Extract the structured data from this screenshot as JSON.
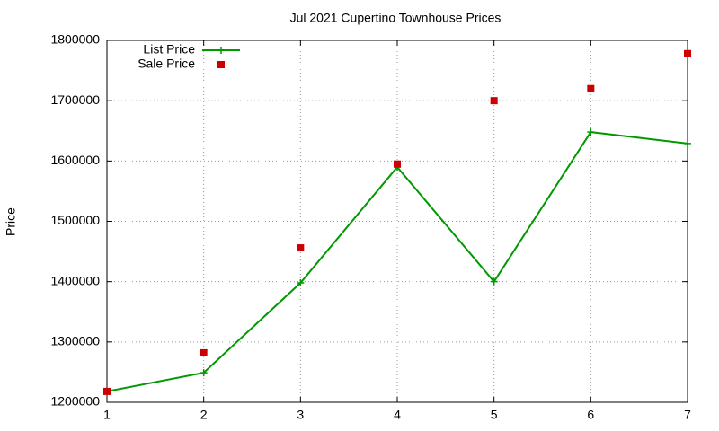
{
  "chart_data": {
    "type": "line",
    "title": "Jul 2021 Cupertino Townhouse Prices",
    "y_label": "Price",
    "x": [
      1,
      2,
      3,
      4,
      5,
      6,
      7
    ],
    "series": [
      {
        "name": "List Price",
        "color": "#009900",
        "style": "linespoints",
        "values": [
          1218000,
          1249000,
          1398000,
          1590000,
          1400000,
          1648000,
          1629000
        ]
      },
      {
        "name": "Sale Price",
        "color": "#cc0000",
        "style": "points",
        "values": [
          1218000,
          1282000,
          1456000,
          1595000,
          1700000,
          1720000,
          1778000
        ]
      }
    ],
    "xlim": [
      1,
      7
    ],
    "xticks": [
      1,
      2,
      3,
      4,
      5,
      6,
      7
    ],
    "ylim": [
      1200000,
      1800000
    ],
    "yticks": [
      1200000,
      1300000,
      1400000,
      1500000,
      1600000,
      1700000,
      1800000
    ],
    "grid": true,
    "legend": "top-left"
  }
}
